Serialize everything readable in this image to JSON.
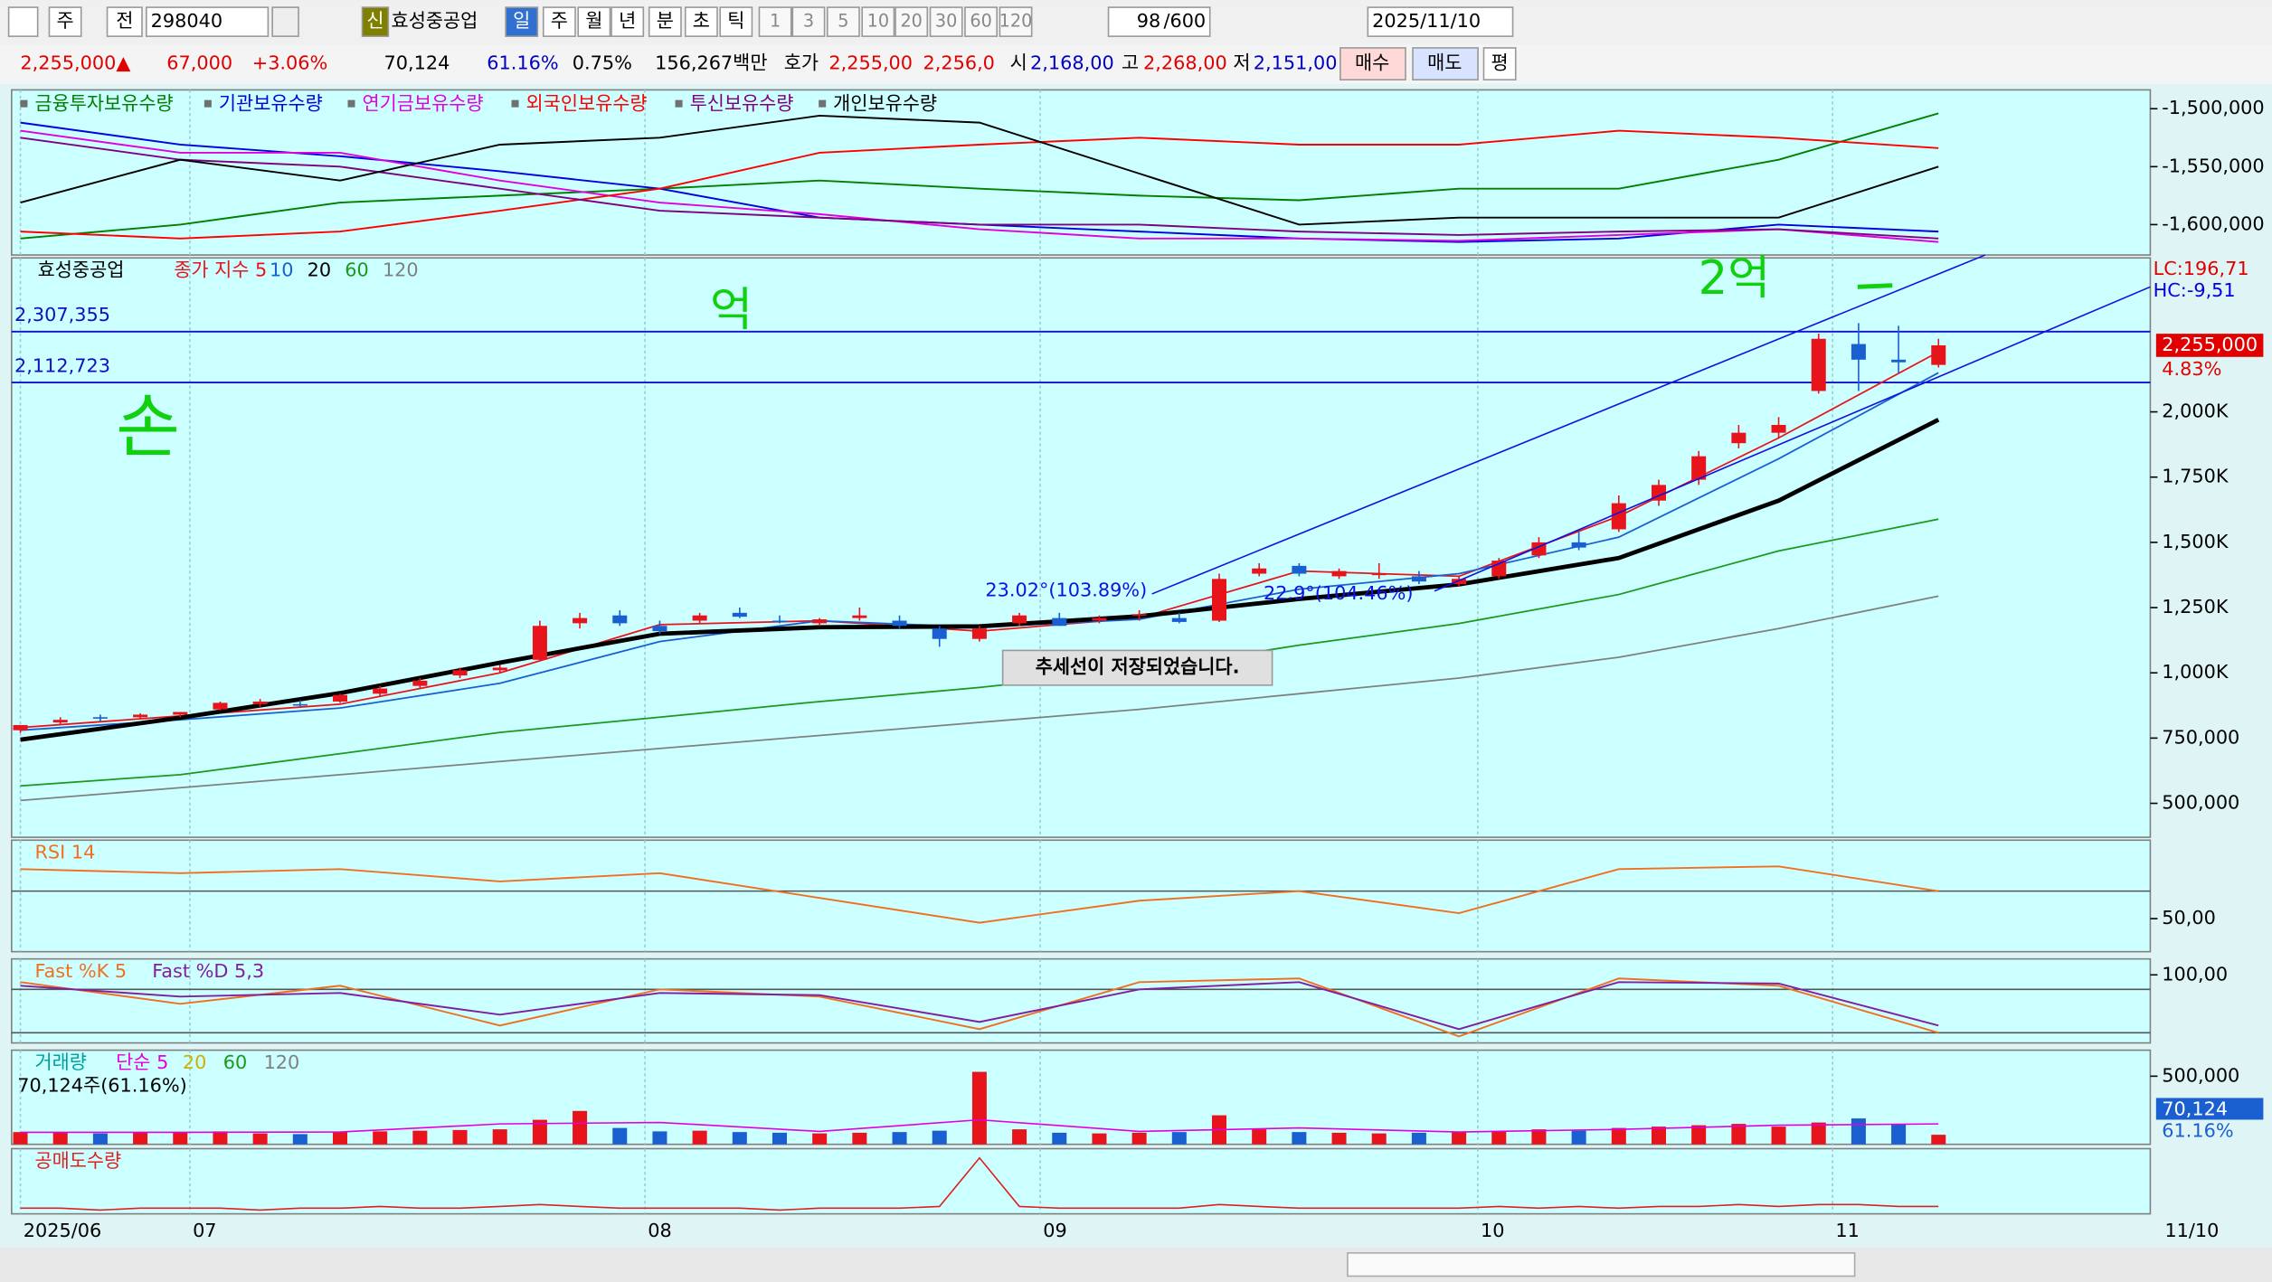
{
  "toolbar": {
    "market": "주",
    "prev": "전",
    "code": "298040",
    "badge": "신",
    "name": "효성중공업",
    "periods": [
      "일",
      "주",
      "월",
      "년",
      "분",
      "초",
      "틱"
    ],
    "minutes": [
      "1",
      "3",
      "5",
      "10",
      "20",
      "30",
      "60",
      "120"
    ],
    "count": "98",
    "count_max": "/600",
    "date": "2025/11/10"
  },
  "quote": {
    "price": "2,255,000▲",
    "change": "67,000",
    "change_pct": "+3.06%",
    "volume": "70,124",
    "volume_ratio": "61.16%",
    "turnover": "0.75%",
    "amount": "156,267백만",
    "ask_label": "호가",
    "ask": "2,255,00",
    "bid": "2,256,0",
    "open_label": "시",
    "open": "2,168,00",
    "high_label": "고",
    "high": "2,268,00",
    "low_label": "저",
    "low": "2,151,00",
    "buy": "매수",
    "sell": "매도",
    "avg": "평"
  },
  "chart_data": [
    {
      "type": "line",
      "x": [
        0,
        4,
        8,
        12,
        16,
        20,
        24,
        28,
        32,
        36,
        40,
        44,
        48
      ],
      "series": [
        {
          "name": "금융투자보유수량",
          "color": "#008000",
          "values": [
            -1612000,
            -1600000,
            -1581000,
            -1575000,
            -1569000,
            -1562000,
            -1569000,
            -1575000,
            -1579000,
            -1569000,
            -1569000,
            -1544000,
            -1504000
          ]
        },
        {
          "name": "기관보유수량",
          "color": "#0000e0",
          "values": [
            -1512000,
            -1531000,
            -1541000,
            -1554000,
            -1569000,
            -1594000,
            -1600000,
            -1606000,
            -1612000,
            -1615000,
            -1612000,
            -1600000,
            -1606000
          ]
        },
        {
          "name": "연기금보유수량",
          "color": "#e000e0",
          "values": [
            -1519000,
            -1538000,
            -1538000,
            -1562000,
            -1581000,
            -1591000,
            -1604000,
            -1612000,
            -1612000,
            -1614000,
            -1609000,
            -1604000,
            -1615000
          ]
        },
        {
          "name": "외국인보유수량",
          "color": "#ff0000",
          "values": [
            -1606000,
            -1612000,
            -1606000,
            -1588000,
            -1569000,
            -1538000,
            -1531000,
            -1525000,
            -1531000,
            -1531000,
            -1519000,
            -1525000,
            -1534000
          ]
        },
        {
          "name": "투신보유수량",
          "color": "#800080",
          "values": [
            -1525000,
            -1544000,
            -1550000,
            -1569000,
            -1588000,
            -1594000,
            -1600000,
            -1600000,
            -1606000,
            -1609000,
            -1606000,
            -1604000,
            -1612000
          ]
        },
        {
          "name": "개인보유수량",
          "color": "#000000",
          "values": [
            -1581000,
            -1544000,
            -1562000,
            -1531000,
            -1525000,
            -1506000,
            -1512000,
            -1556000,
            -1600000,
            -1594000,
            -1594000,
            -1594000,
            -1550000
          ]
        }
      ],
      "ylim": [
        -1626250,
        -1483750
      ],
      "yticks": [
        {
          "value": -1500000,
          "label": "-1,500,000"
        },
        {
          "value": -1550000,
          "label": "-1,550,000"
        },
        {
          "value": -1600000,
          "label": "-1,600,000"
        }
      ]
    },
    {
      "type": "candlestick",
      "title": "효성중공업",
      "open": [
        780000,
        810000,
        830000,
        830000,
        840000,
        860000,
        880000,
        880000,
        890000,
        920000,
        950000,
        990000,
        1010000,
        1050000,
        1190000,
        1220000,
        1180000,
        1200000,
        1230000,
        1200000,
        1190000,
        1210000,
        1200000,
        1170000,
        1130000,
        1190000,
        1210000,
        1200000,
        1220000,
        1210000,
        1200000,
        1380000,
        1410000,
        1370000,
        1380000,
        1370000,
        1340000,
        1370000,
        1450000,
        1500000,
        1550000,
        1660000,
        1740000,
        1880000,
        1920000,
        2080000,
        2260000,
        2200000,
        2180000
      ],
      "high": [
        800000,
        830000,
        840000,
        845000,
        850000,
        890000,
        900000,
        895000,
        920000,
        950000,
        980000,
        1020000,
        1030000,
        1200000,
        1230000,
        1240000,
        1200000,
        1230000,
        1250000,
        1220000,
        1210000,
        1250000,
        1220000,
        1180000,
        1180000,
        1230000,
        1230000,
        1220000,
        1240000,
        1230000,
        1380000,
        1420000,
        1420000,
        1400000,
        1420000,
        1390000,
        1370000,
        1440000,
        1520000,
        1540000,
        1680000,
        1740000,
        1850000,
        1950000,
        1980000,
        2300000,
        2340000,
        2330000,
        2280000
      ],
      "low": [
        770000,
        800000,
        815000,
        825000,
        830000,
        855000,
        870000,
        870000,
        885000,
        910000,
        940000,
        980000,
        1000000,
        1045000,
        1170000,
        1180000,
        1150000,
        1190000,
        1210000,
        1190000,
        1180000,
        1200000,
        1170000,
        1100000,
        1120000,
        1180000,
        1180000,
        1190000,
        1200000,
        1190000,
        1195000,
        1370000,
        1370000,
        1360000,
        1360000,
        1340000,
        1330000,
        1360000,
        1440000,
        1470000,
        1540000,
        1640000,
        1720000,
        1860000,
        1900000,
        2070000,
        2080000,
        2150000,
        2170000
      ],
      "close": [
        800000,
        820000,
        825000,
        840000,
        850000,
        885000,
        890000,
        875000,
        915000,
        940000,
        970000,
        1010000,
        1020000,
        1180000,
        1210000,
        1190000,
        1160000,
        1220000,
        1215000,
        1195000,
        1205000,
        1220000,
        1180000,
        1130000,
        1170000,
        1220000,
        1180000,
        1210000,
        1225000,
        1195000,
        1360000,
        1400000,
        1380000,
        1390000,
        1380000,
        1350000,
        1360000,
        1430000,
        1500000,
        1480000,
        1650000,
        1720000,
        1830000,
        1920000,
        1950000,
        2280000,
        2200000,
        2190000,
        2255000
      ],
      "up_color": "#e8141b",
      "down_color": "#1a5fd0",
      "ma_x": [
        0,
        4,
        8,
        12,
        16,
        20,
        24,
        28,
        32,
        36,
        40,
        44,
        48
      ],
      "series": [
        {
          "name": "종가 지수 5",
          "color": "#e8141b",
          "values": [
            790000,
            835000,
            880000,
            1000000,
            1185000,
            1200000,
            1160000,
            1210000,
            1390000,
            1370000,
            1600000,
            1900000,
            2230000
          ]
        },
        {
          "name": "10",
          "color": "#1a5fd0",
          "values": [
            780000,
            820000,
            865000,
            960000,
            1120000,
            1200000,
            1175000,
            1205000,
            1320000,
            1380000,
            1520000,
            1820000,
            2150000
          ]
        },
        {
          "name": "20",
          "color": "#000000",
          "values": [
            744000,
            828000,
            922000,
            1039000,
            1150000,
            1175000,
            1178000,
            1217000,
            1283000,
            1339000,
            1440000,
            1660000,
            1970000
          ]
        },
        {
          "name": "60",
          "color": "#1a9a1a",
          "values": [
            567000,
            610000,
            690000,
            772000,
            830000,
            890000,
            944000,
            1010000,
            1106000,
            1189000,
            1300000,
            1467000,
            1589000
          ]
        },
        {
          "name": "120",
          "color": "#808080",
          "values": [
            511000,
            560000,
            610000,
            660000,
            710000,
            760000,
            810000,
            860000,
            920000,
            980000,
            1060000,
            1170000,
            1294000
          ]
        }
      ],
      "xlim": [
        -0.22,
        53.3
      ],
      "xticks": [
        {
          "value": 0,
          "label": "2025/06"
        },
        {
          "value": 4.24,
          "label": "07"
        },
        {
          "value": 15.63,
          "label": "08"
        },
        {
          "value": 25.52,
          "label": "09"
        },
        {
          "value": 36.47,
          "label": "10"
        },
        {
          "value": 45.35,
          "label": "11"
        }
      ],
      "x_end_label": "11/10",
      "ylim": [
        370000,
        2590000
      ],
      "yticks": [
        {
          "value": 2000000,
          "label": "2,000K"
        },
        {
          "value": 1750000,
          "label": "1,750K"
        },
        {
          "value": 1500000,
          "label": "1,500K"
        },
        {
          "value": 1250000,
          "label": "1,250K"
        },
        {
          "value": 1000000,
          "label": "1,000K"
        },
        {
          "value": 750000,
          "label": "750,000"
        },
        {
          "value": 500000,
          "label": "500,000"
        }
      ],
      "hlines": [
        {
          "value": 2307355,
          "label": "2,307,355"
        },
        {
          "value": 2112723,
          "label": "2,112,723"
        }
      ],
      "last": {
        "value": 2255000,
        "label": "2,255,000",
        "change_label": "4.83%"
      },
      "lc_label": "LC:196,71",
      "hc_label": "HC:-9,51",
      "trend_labels": [
        "23.02°(103.89%)",
        "22.9°(104.46%)"
      ],
      "notice": "추세선이 저장되었습니다.",
      "handwriting": [
        "억",
        "손",
        "2억"
      ]
    },
    {
      "type": "line",
      "title": "RSI 14",
      "x": [
        0,
        4,
        8,
        12,
        16,
        20,
        24,
        28,
        32,
        36,
        40,
        44,
        48
      ],
      "series": [
        {
          "name": "RSI 14",
          "color": "#f07020",
          "values": [
            86,
            83,
            86,
            77,
            83,
            65,
            47,
            63,
            70,
            54,
            86,
            88,
            70
          ]
        }
      ],
      "ylim": [
        26,
        107
      ],
      "yticks": [
        {
          "value": 50,
          "label": "50,00"
        }
      ],
      "ref_lines": [
        70
      ]
    },
    {
      "type": "line",
      "x": [
        0,
        4,
        8,
        12,
        16,
        20,
        24,
        28,
        32,
        36,
        40,
        44,
        48
      ],
      "series": [
        {
          "name": "Fast %K 5",
          "color": "#f07020",
          "values": [
            90,
            60,
            85,
            30,
            80,
            70,
            25,
            90,
            95,
            15,
            95,
            85,
            20
          ]
        },
        {
          "name": "Fast %D 5,3",
          "color": "#8020a0",
          "values": [
            85,
            70,
            75,
            45,
            75,
            72,
            35,
            80,
            90,
            25,
            90,
            88,
            30
          ]
        }
      ],
      "ylim": [
        6,
        122
      ],
      "yticks": [
        {
          "value": 100,
          "label": "100,00"
        }
      ],
      "ref_lines": [
        80,
        20
      ]
    },
    {
      "type": "bar",
      "title": "거래량",
      "values": [
        90000,
        85000,
        80000,
        85000,
        90000,
        95000,
        80000,
        75000,
        90000,
        95000,
        100000,
        105000,
        110000,
        180000,
        245000,
        120000,
        95000,
        100000,
        90000,
        85000,
        80000,
        85000,
        90000,
        100000,
        532000,
        110000,
        85000,
        80000,
        85000,
        90000,
        213000,
        110000,
        90000,
        85000,
        80000,
        85000,
        90000,
        95000,
        110000,
        100000,
        120000,
        130000,
        140000,
        150000,
        130000,
        160000,
        190000,
        150000,
        70124
      ],
      "ma_legend": [
        {
          "name": "단순 5",
          "color": "#e000e0"
        },
        {
          "name": "20",
          "color": "#d0b000"
        },
        {
          "name": "60",
          "color": "#1a9a1a"
        },
        {
          "name": "120",
          "color": "#808080"
        }
      ],
      "ma_x": [
        0,
        4,
        8,
        12,
        16,
        20,
        24,
        28,
        32,
        36,
        40,
        44,
        48
      ],
      "ma_values": [
        88000,
        88000,
        90000,
        150000,
        160000,
        95000,
        180000,
        95000,
        120000,
        90000,
        110000,
        140000,
        150000
      ],
      "value_label": "70,124주(61.16%)",
      "last_label": "70,124",
      "last_ratio": "61.16%",
      "ylim": [
        0,
        691000
      ],
      "yticks": [
        {
          "value": 500000,
          "label": "500,000"
        }
      ]
    },
    {
      "type": "line",
      "title": "공매도수량",
      "values": [
        3,
        3,
        2,
        3,
        3,
        3,
        2,
        3,
        3,
        4,
        3,
        3,
        4,
        5,
        4,
        3,
        3,
        3,
        3,
        2,
        3,
        3,
        3,
        4,
        30,
        4,
        3,
        3,
        3,
        3,
        5,
        4,
        3,
        3,
        3,
        3,
        3,
        4,
        3,
        4,
        3,
        4,
        4,
        5,
        4,
        5,
        5,
        4,
        4
      ],
      "color": "#e02020",
      "ylim": [
        0,
        35
      ]
    }
  ]
}
